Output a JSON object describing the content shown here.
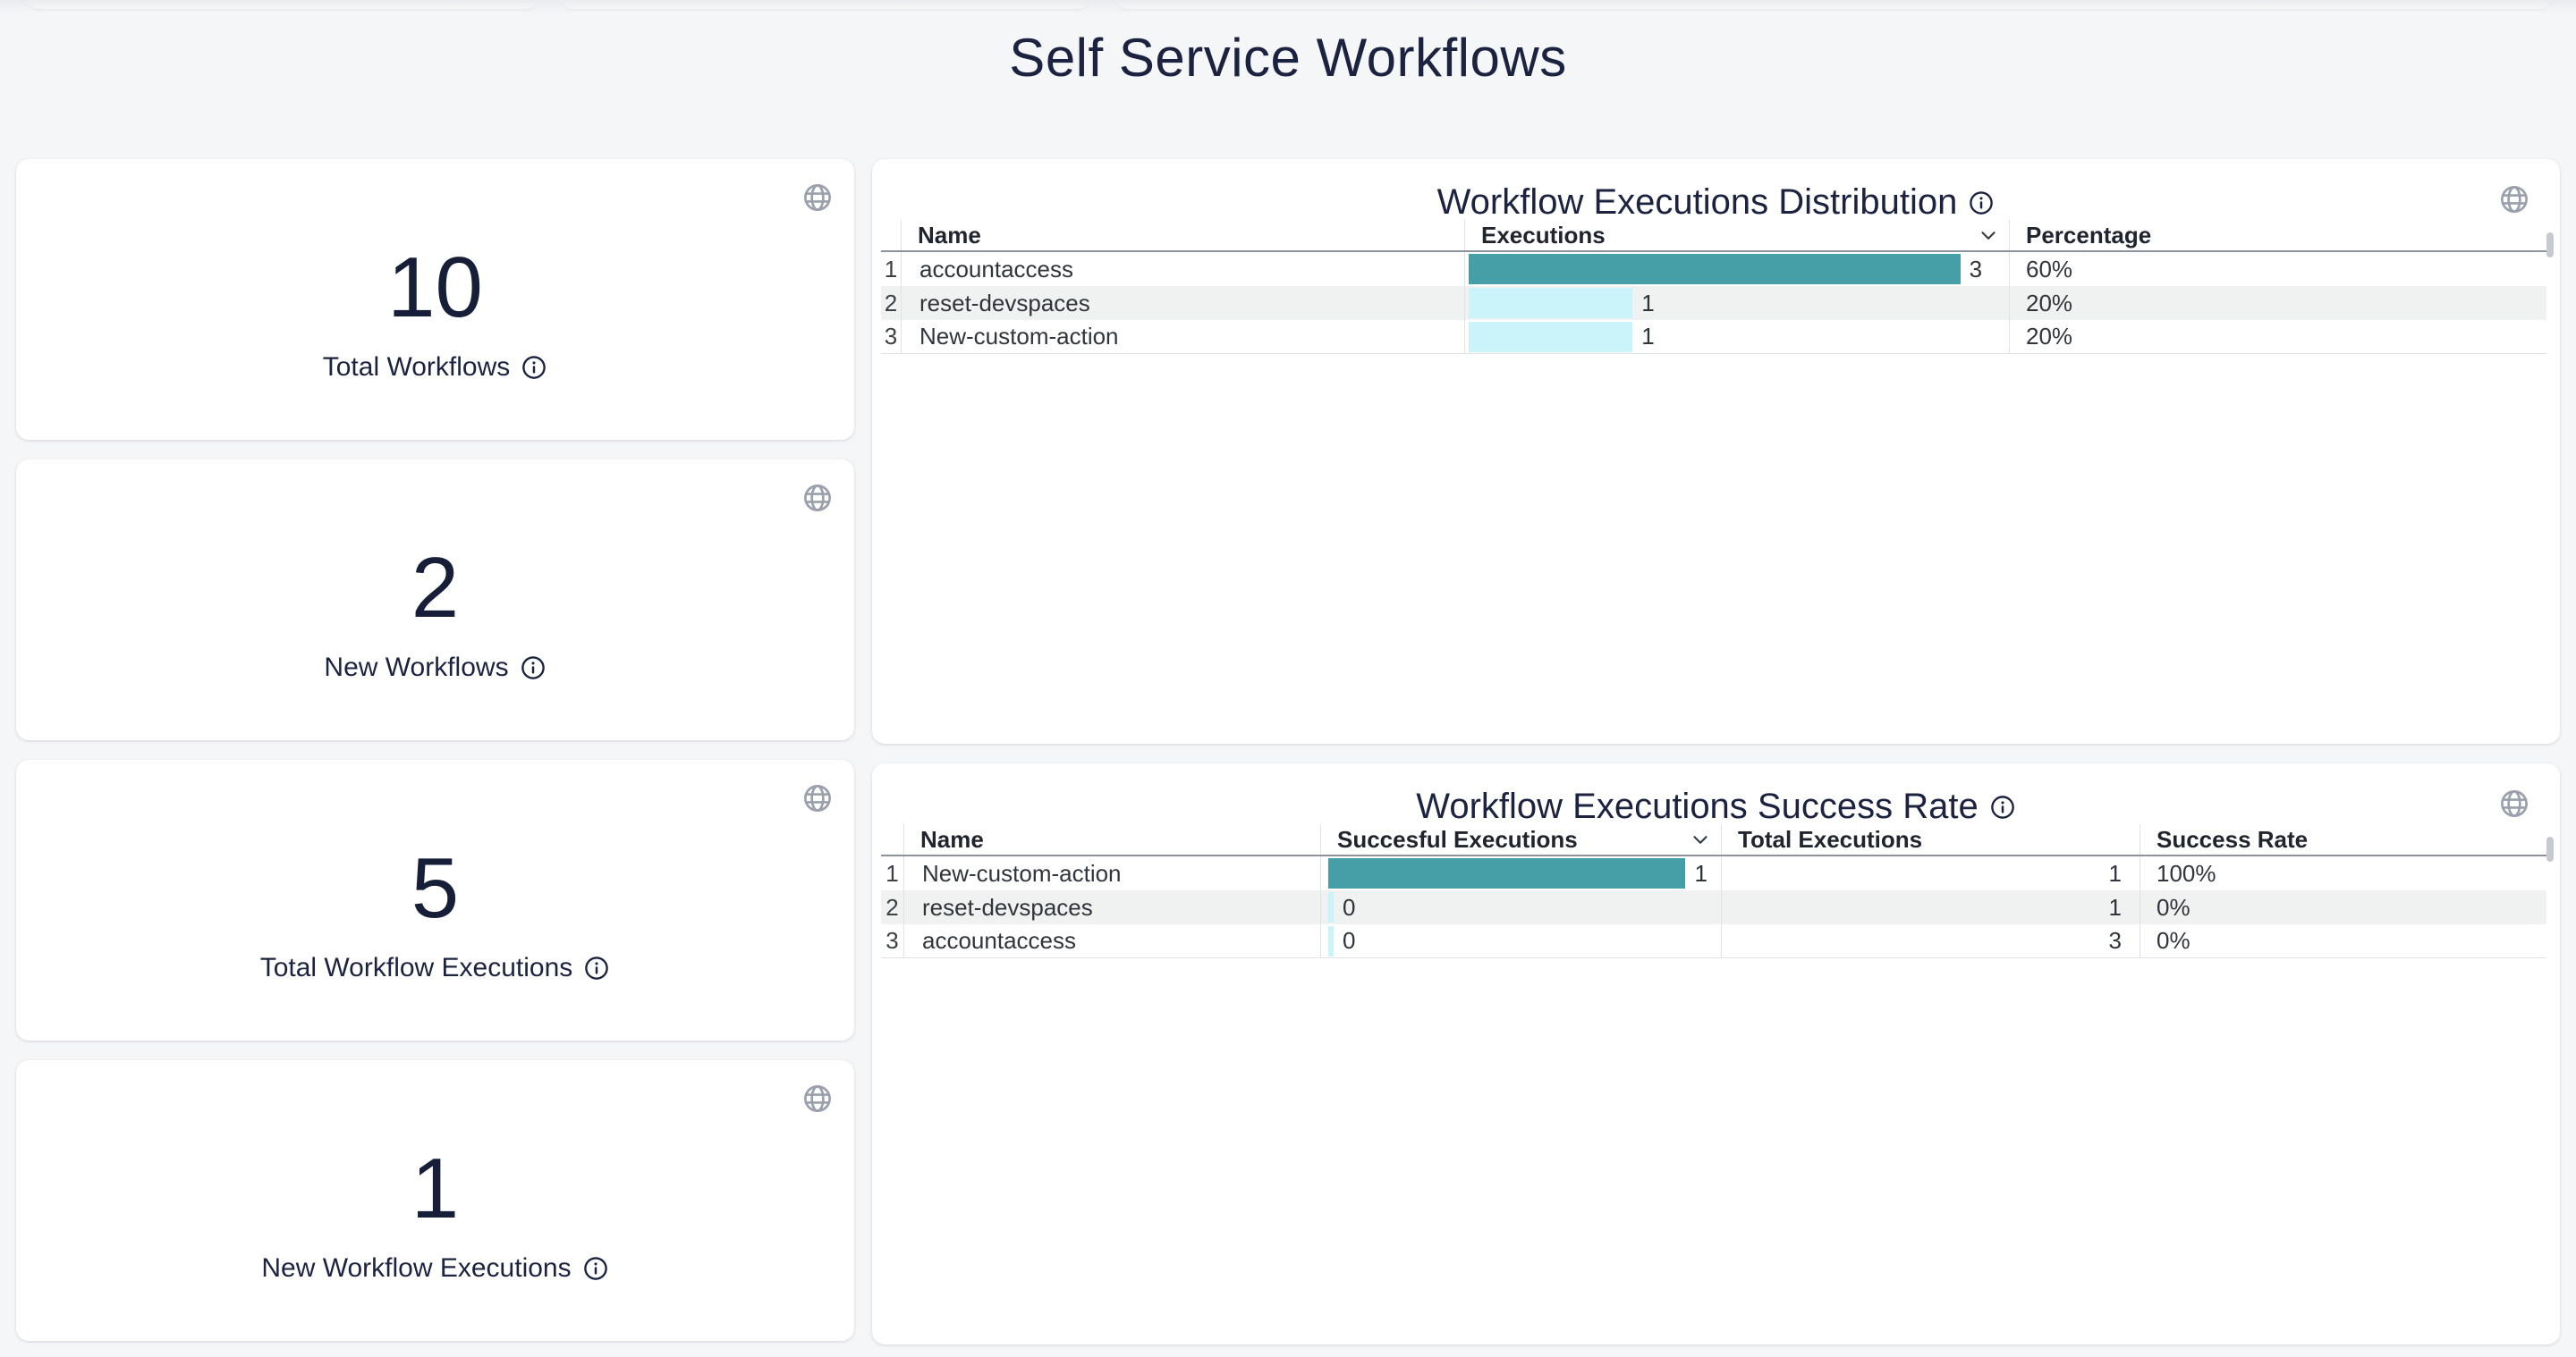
{
  "page": {
    "title": "Self Service Workflows"
  },
  "colors": {
    "page_background": "#f5f6f8",
    "card_background": "#ffffff",
    "title_text": "#1b2340",
    "bar_primary": "#469ea6",
    "bar_secondary": "#cbf3fa",
    "row_stripe": "#f0f1f1"
  },
  "stat_cards": [
    {
      "value": "10",
      "label": "Total Workflows"
    },
    {
      "value": "2",
      "label": "New Workflows"
    },
    {
      "value": "5",
      "label": "Total Workflow Executions"
    },
    {
      "value": "1",
      "label": "New Workflow Executions"
    }
  ],
  "distribution_table": {
    "title": "Workflow Executions Distribution",
    "headers": {
      "name": "Name",
      "executions": "Executions",
      "percentage": "Percentage"
    },
    "sorted_column": "Executions",
    "max_executions": 3,
    "rows": [
      {
        "index": "1",
        "name": "accountaccess",
        "executions": 3,
        "percentage": "60%"
      },
      {
        "index": "2",
        "name": "reset-devspaces",
        "executions": 1,
        "percentage": "20%"
      },
      {
        "index": "3",
        "name": "New-custom-action",
        "executions": 1,
        "percentage": "20%"
      }
    ]
  },
  "success_table": {
    "title": "Workflow Executions Success Rate",
    "headers": {
      "name": "Name",
      "successful": "Succesful Executions",
      "total": "Total Executions",
      "rate": "Success Rate"
    },
    "sorted_column": "Succesful Executions",
    "max_successful": 1,
    "rows": [
      {
        "index": "1",
        "name": "New-custom-action",
        "successful": 1,
        "total": "1",
        "rate": "100%"
      },
      {
        "index": "2",
        "name": "reset-devspaces",
        "successful": 0,
        "total": "1",
        "rate": "0%"
      },
      {
        "index": "3",
        "name": "accountaccess",
        "successful": 0,
        "total": "3",
        "rate": "0%"
      }
    ]
  }
}
